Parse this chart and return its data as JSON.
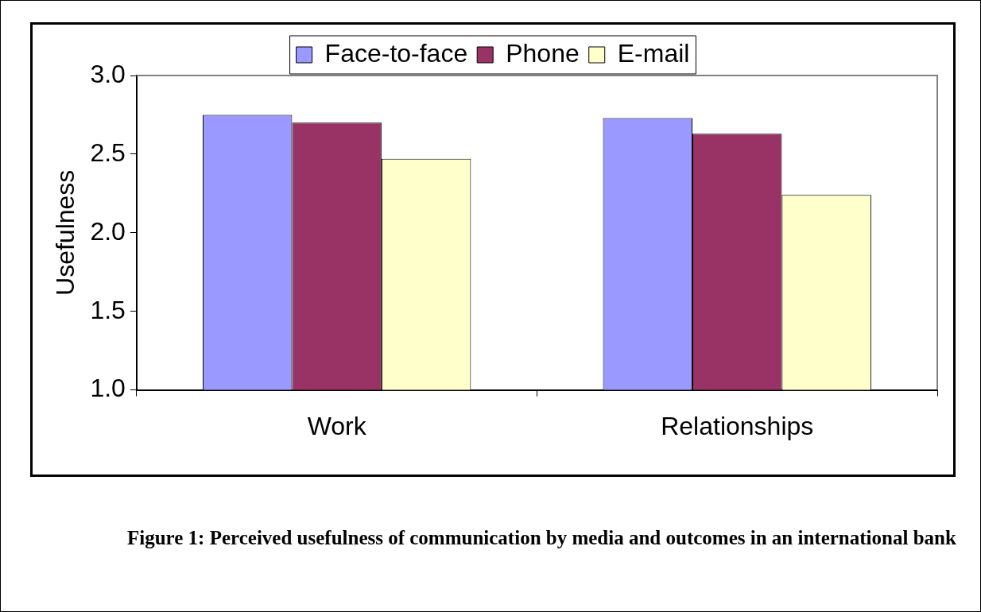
{
  "chart_data": {
    "type": "bar",
    "categories": [
      "Work",
      "Relationships"
    ],
    "series": [
      {
        "name": "Face-to-face",
        "color": "#9999ff",
        "values": [
          2.75,
          2.73
        ]
      },
      {
        "name": "Phone",
        "color": "#993366",
        "values": [
          2.7,
          2.63
        ]
      },
      {
        "name": "E-mail",
        "color": "#ffffcc",
        "values": [
          2.47,
          2.24
        ]
      }
    ],
    "ylabel": "Usefulness",
    "ylim": [
      1.0,
      3.0
    ],
    "yticks": [
      {
        "value": 1.0,
        "label": "1.0"
      },
      {
        "value": 1.5,
        "label": "1.5"
      },
      {
        "value": 2.0,
        "label": "2.0"
      },
      {
        "value": 2.5,
        "label": "2.5"
      },
      {
        "value": 3.0,
        "label": "3.0"
      }
    ],
    "legend": "top",
    "grid": false,
    "annotations": [
      "Figure 1: Perceived usefulness of communication by media and outcomes in an international bank"
    ]
  }
}
